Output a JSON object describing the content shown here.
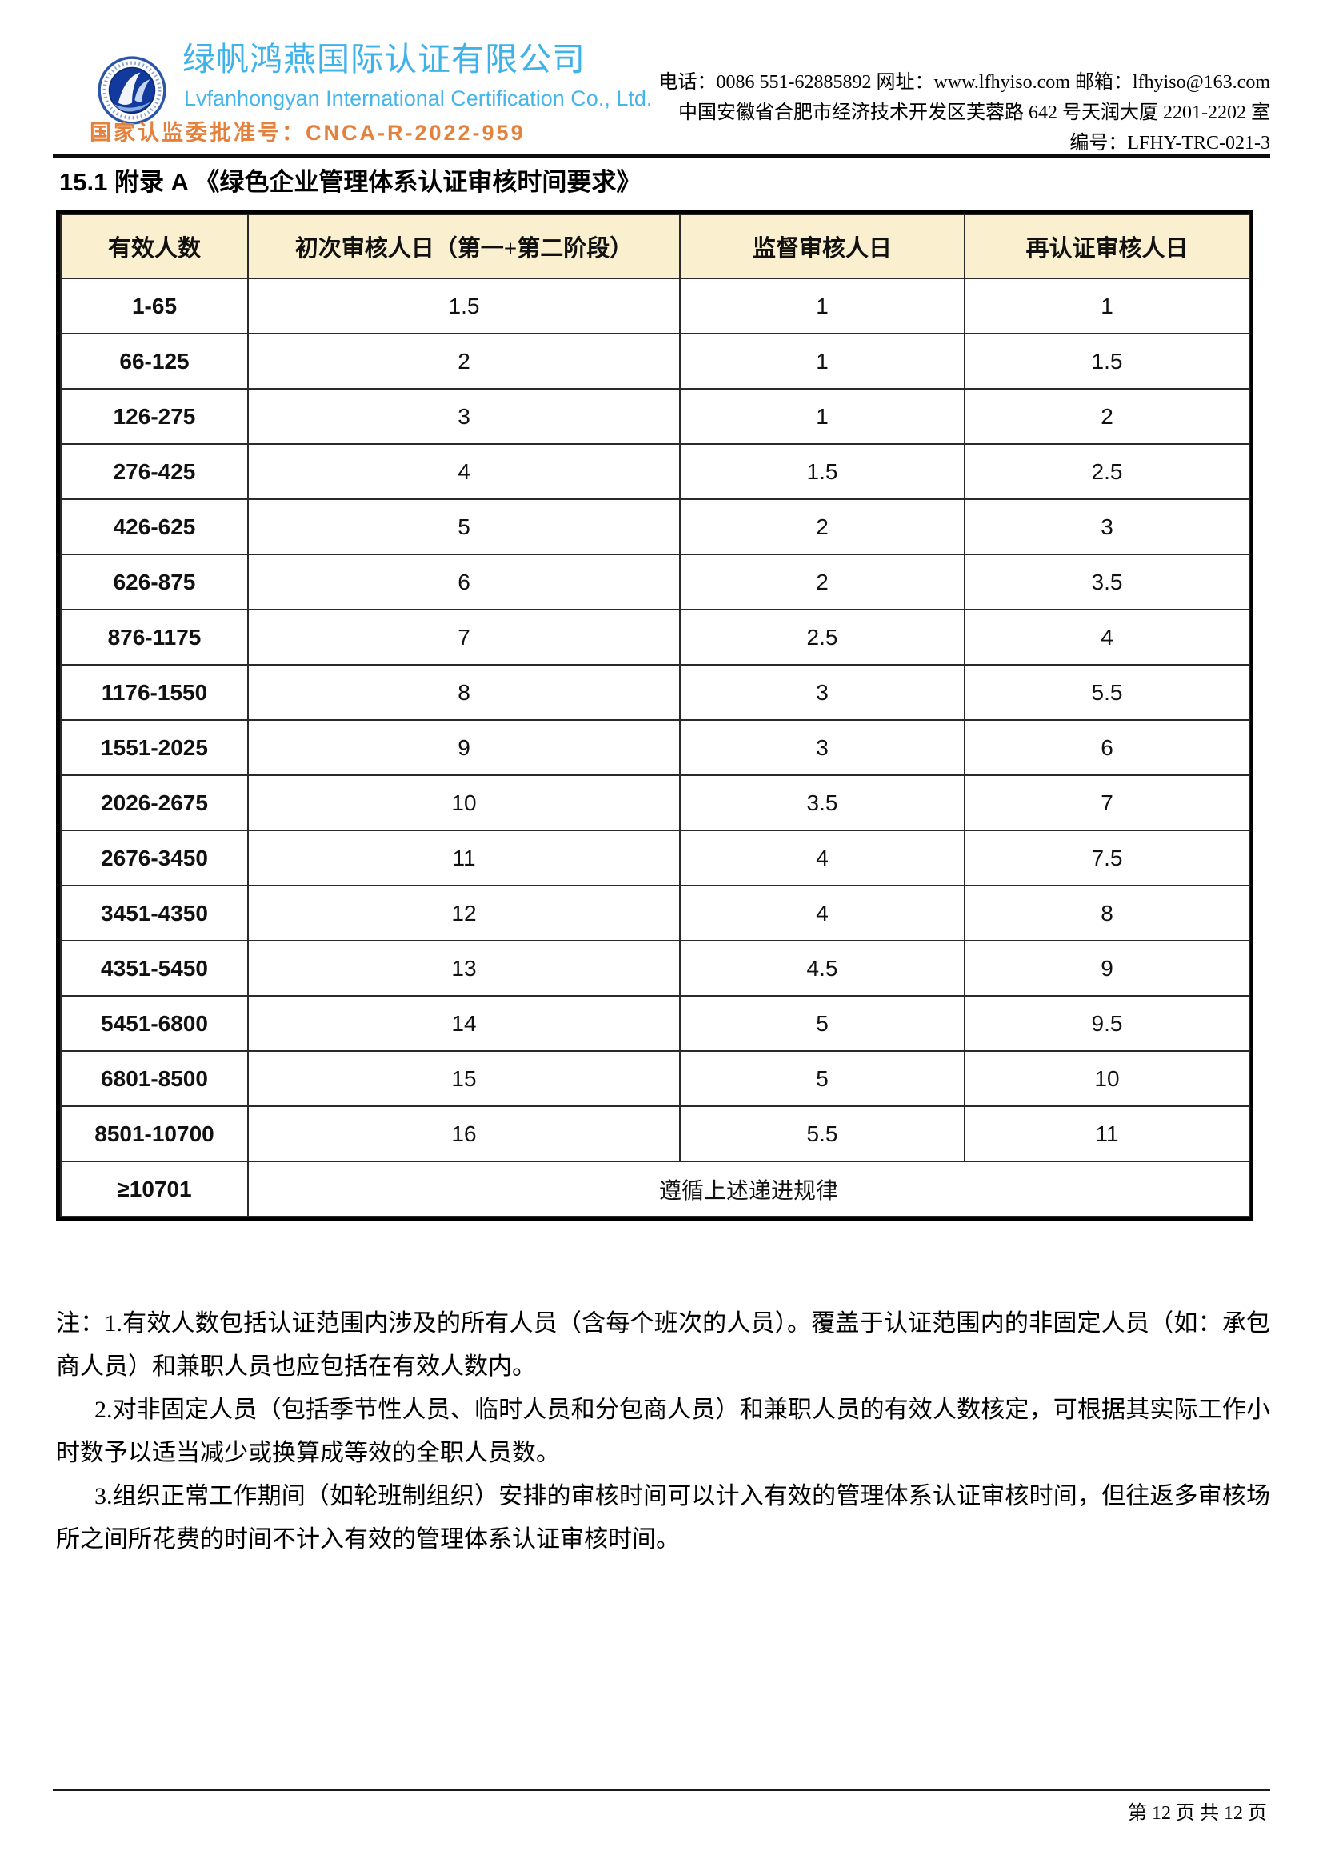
{
  "header": {
    "company_name_cn": "绿帆鸿燕国际认证有限公司",
    "company_name_en": "Lvfanhongyan International Certification Co., Ltd.",
    "approval_no": "国家认监委批准号：CNCA-R-2022-959",
    "contact_line1": "电话：0086 551-62885892 网址：www.lfhyiso.com 邮箱：lfhyiso@163.com",
    "address": "中国安徽省合肥市经济技术开发区芙蓉路 642 号天润大厦 2201-2202 室",
    "doc_no": "编号：LFHY-TRC-021-3"
  },
  "title": "15.1 附录 A  《绿色企业管理体系认证审核时间要求》",
  "table": {
    "headers": [
      "有效人数",
      "初次审核人日（第一+第二阶段）",
      "监督审核人日",
      "再认证审核人日"
    ],
    "rows": [
      [
        "1-65",
        "1.5",
        "1",
        "1"
      ],
      [
        "66-125",
        "2",
        "1",
        "1.5"
      ],
      [
        "126-275",
        "3",
        "1",
        "2"
      ],
      [
        "276-425",
        "4",
        "1.5",
        "2.5"
      ],
      [
        "426-625",
        "5",
        "2",
        "3"
      ],
      [
        "626-875",
        "6",
        "2",
        "3.5"
      ],
      [
        "876-1175",
        "7",
        "2.5",
        "4"
      ],
      [
        "1176-1550",
        "8",
        "3",
        "5.5"
      ],
      [
        "1551-2025",
        "9",
        "3",
        "6"
      ],
      [
        "2026-2675",
        "10",
        "3.5",
        "7"
      ],
      [
        "2676-3450",
        "11",
        "4",
        "7.5"
      ],
      [
        "3451-4350",
        "12",
        "4",
        "8"
      ],
      [
        "4351-5450",
        "13",
        "4.5",
        "9"
      ],
      [
        "5451-6800",
        "14",
        "5",
        "9.5"
      ],
      [
        "6801-8500",
        "15",
        "5",
        "10"
      ],
      [
        "8501-10700",
        "16",
        "5.5",
        "11"
      ]
    ],
    "final_row": {
      "range": "≥10701",
      "note": "遵循上述递进规律"
    }
  },
  "notes": {
    "note1": "注：1.有效人数包括认证范围内涉及的所有人员（含每个班次的人员）。覆盖于认证范围内的非固定人员（如：承包商人员）和兼职人员也应包括在有效人数内。",
    "note2": "2.对非固定人员（包括季节性人员、临时人员和分包商人员）和兼职人员的有效人数核定，可根据其实际工作小时数予以适当减少或换算成等效的全职人员数。",
    "note3": "3.组织正常工作期间（如轮班制组织）安排的审核时间可以计入有效的管理体系认证审核时间，但往返多审核场所之间所花费的时间不计入有效的管理体系认证审核时间。"
  },
  "footer": {
    "page_text": "第 12 页 共 12 页"
  },
  "colors": {
    "brand_cyan": "#3fb3e9",
    "accent_orange": "#e4813c",
    "table_header_bg": "#faf0cf",
    "border_black": "#000000"
  }
}
